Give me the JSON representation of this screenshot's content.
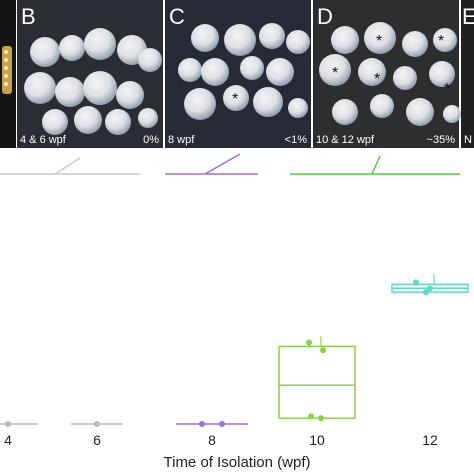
{
  "panels": [
    {
      "letter": "B",
      "caption_left": "4 & 6 wpf",
      "caption_right": "0%"
    },
    {
      "letter": "C",
      "caption_left": "8 wpf",
      "caption_right": "<1%"
    },
    {
      "letter": "D",
      "caption_left": "10 & 12 wpf",
      "caption_right": "~35%"
    },
    {
      "letter": "E",
      "caption_left": "N",
      "caption_right": ""
    }
  ],
  "colors": {
    "gray": "#b8b8b8",
    "purple": "#9b6fd6",
    "green": "#55cc44",
    "lightgreen": "#8cd04a",
    "teal": "#5fd9c8"
  },
  "chart_data": {
    "type": "box",
    "xlabel": "Time of Isolation (wpf)",
    "categories": [
      "4",
      "6",
      "8",
      "10",
      "12"
    ],
    "ylim": [
      0,
      1
    ],
    "groups": [
      {
        "category": "4",
        "points": [
          0.0
        ],
        "median": 0.0,
        "q1": 0.0,
        "q3": 0.0
      },
      {
        "category": "6",
        "points": [
          0.0
        ],
        "median": 0.0,
        "q1": 0.0,
        "q3": 0.0
      },
      {
        "category": "8",
        "points": [
          0.0,
          0.0
        ],
        "median": 0.0,
        "q1": 0.0,
        "q3": 0.0
      },
      {
        "category": "10",
        "points": [
          0.42,
          0.38,
          0.03,
          0.04
        ],
        "median": 0.2,
        "q1": 0.03,
        "q3": 0.4
      },
      {
        "category": "12",
        "points": [
          0.73,
          0.68,
          0.7
        ],
        "median": 0.7,
        "q1": 0.68,
        "q3": 0.72
      }
    ]
  }
}
